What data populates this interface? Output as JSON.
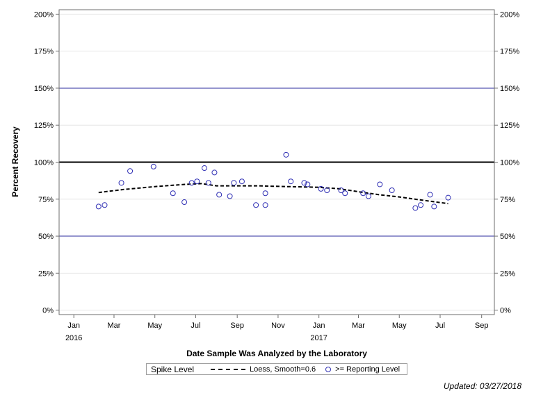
{
  "chart_data": {
    "type": "scatter",
    "title": "",
    "xlabel": "Date Sample Was Analyzed by the Laboratory",
    "ylabel": "Percent Recovery",
    "x_tick_labels": [
      {
        "date": "2016-01-01",
        "label": "Jan",
        "year": "2016"
      },
      {
        "date": "2016-03-01",
        "label": "Mar",
        "year": ""
      },
      {
        "date": "2016-05-01",
        "label": "May",
        "year": ""
      },
      {
        "date": "2016-07-01",
        "label": "Jul",
        "year": ""
      },
      {
        "date": "2016-09-01",
        "label": "Sep",
        "year": ""
      },
      {
        "date": "2016-11-01",
        "label": "Nov",
        "year": ""
      },
      {
        "date": "2017-01-01",
        "label": "Jan",
        "year": "2017"
      },
      {
        "date": "2017-03-01",
        "label": "Mar",
        "year": ""
      },
      {
        "date": "2017-05-01",
        "label": "May",
        "year": ""
      },
      {
        "date": "2017-07-01",
        "label": "Jul",
        "year": ""
      },
      {
        "date": "2017-09-01",
        "label": "Sep",
        "year": ""
      }
    ],
    "xlim": [
      "2015-12-10",
      "2017-09-20"
    ],
    "ylim": [
      -3,
      203
    ],
    "y_ticks": [
      0,
      25,
      50,
      75,
      100,
      125,
      150,
      175,
      200
    ],
    "y_tick_labels": [
      "0%",
      "25%",
      "50%",
      "75%",
      "100%",
      "125%",
      "150%",
      "175%",
      "200%"
    ],
    "reference_lines": [
      {
        "y": 100,
        "color": "#000000",
        "width": 2
      },
      {
        "y": 150,
        "color": "#2b2b9e",
        "width": 1
      },
      {
        "y": 50,
        "color": "#2b2b9e",
        "width": 1
      }
    ],
    "grid": true,
    "series": [
      {
        "name": ">= Reporting Level",
        "kind": "scatter",
        "color": "#2f2fb4",
        "points": [
          {
            "x": "2016-02-07",
            "y": 70
          },
          {
            "x": "2016-02-16",
            "y": 71
          },
          {
            "x": "2016-03-12",
            "y": 86
          },
          {
            "x": "2016-03-25",
            "y": 94
          },
          {
            "x": "2016-04-29",
            "y": 97
          },
          {
            "x": "2016-05-28",
            "y": 79
          },
          {
            "x": "2016-06-14",
            "y": 73
          },
          {
            "x": "2016-06-25",
            "y": 86
          },
          {
            "x": "2016-07-03",
            "y": 87
          },
          {
            "x": "2016-07-14",
            "y": 96
          },
          {
            "x": "2016-07-20",
            "y": 86
          },
          {
            "x": "2016-07-29",
            "y": 93
          },
          {
            "x": "2016-08-05",
            "y": 78
          },
          {
            "x": "2016-08-21",
            "y": 77
          },
          {
            "x": "2016-08-27",
            "y": 86
          },
          {
            "x": "2016-09-08",
            "y": 87
          },
          {
            "x": "2016-09-29",
            "y": 71
          },
          {
            "x": "2016-10-13",
            "y": 71
          },
          {
            "x": "2016-10-13",
            "y": 79
          },
          {
            "x": "2016-11-13",
            "y": 105
          },
          {
            "x": "2016-11-20",
            "y": 87
          },
          {
            "x": "2016-12-10",
            "y": 86
          },
          {
            "x": "2016-12-15",
            "y": 85
          },
          {
            "x": "2017-01-04",
            "y": 82
          },
          {
            "x": "2017-01-13",
            "y": 81
          },
          {
            "x": "2017-02-03",
            "y": 81
          },
          {
            "x": "2017-02-09",
            "y": 79
          },
          {
            "x": "2017-03-08",
            "y": 79
          },
          {
            "x": "2017-03-16",
            "y": 77
          },
          {
            "x": "2017-04-02",
            "y": 85
          },
          {
            "x": "2017-04-20",
            "y": 81
          },
          {
            "x": "2017-05-25",
            "y": 69
          },
          {
            "x": "2017-06-02",
            "y": 71
          },
          {
            "x": "2017-06-16",
            "y": 78
          },
          {
            "x": "2017-06-22",
            "y": 70
          },
          {
            "x": "2017-07-13",
            "y": 76
          }
        ]
      },
      {
        "name": "Loess, Smooth=0.6",
        "kind": "line",
        "dash": true,
        "color": "#000000",
        "points": [
          {
            "x": "2016-02-07",
            "y": 79.5
          },
          {
            "x": "2016-03-15",
            "y": 81.5
          },
          {
            "x": "2016-05-01",
            "y": 83.5
          },
          {
            "x": "2016-06-15",
            "y": 85
          },
          {
            "x": "2016-07-10",
            "y": 85.5
          },
          {
            "x": "2016-08-01",
            "y": 84
          },
          {
            "x": "2016-10-01",
            "y": 84
          },
          {
            "x": "2016-11-15",
            "y": 83.5
          },
          {
            "x": "2017-01-01",
            "y": 83
          },
          {
            "x": "2017-02-01",
            "y": 82
          },
          {
            "x": "2017-03-01",
            "y": 80
          },
          {
            "x": "2017-04-01",
            "y": 78
          },
          {
            "x": "2017-05-01",
            "y": 76.5
          },
          {
            "x": "2017-06-01",
            "y": 74.5
          },
          {
            "x": "2017-07-13",
            "y": 72
          }
        ]
      }
    ]
  },
  "legend": {
    "title": "Spike Level",
    "loess_label": "Loess, Smooth=0.6",
    "points_label": ">= Reporting Level"
  },
  "footnote": "Updated: 03/27/2018"
}
